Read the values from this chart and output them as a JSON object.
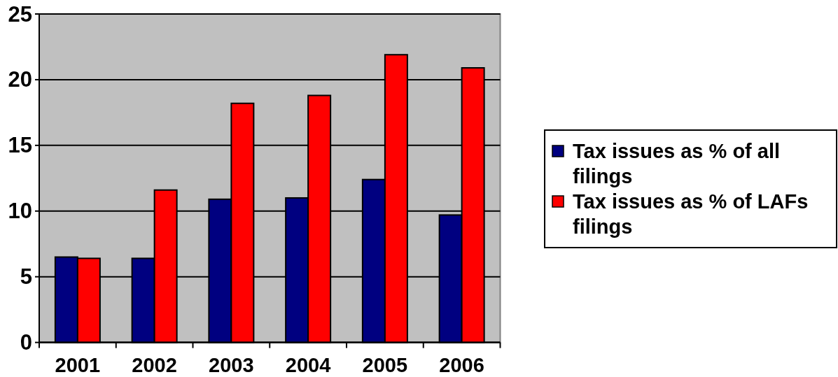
{
  "chart_data": {
    "type": "bar",
    "categories": [
      "2001",
      "2002",
      "2003",
      "2004",
      "2005",
      "2006"
    ],
    "series": [
      {
        "name": "Tax issues as % of all filings",
        "color": "#000080",
        "values": [
          6.5,
          6.4,
          10.9,
          11.0,
          12.4,
          9.7
        ]
      },
      {
        "name": "Tax issues as % of LAFs filings",
        "color": "#ff0000",
        "values": [
          6.4,
          11.6,
          18.2,
          18.8,
          21.9,
          20.9
        ]
      }
    ],
    "ylim": [
      0,
      25
    ],
    "yticks": [
      0,
      5,
      10,
      15,
      20,
      25
    ],
    "grid": "y",
    "legend": "right"
  }
}
